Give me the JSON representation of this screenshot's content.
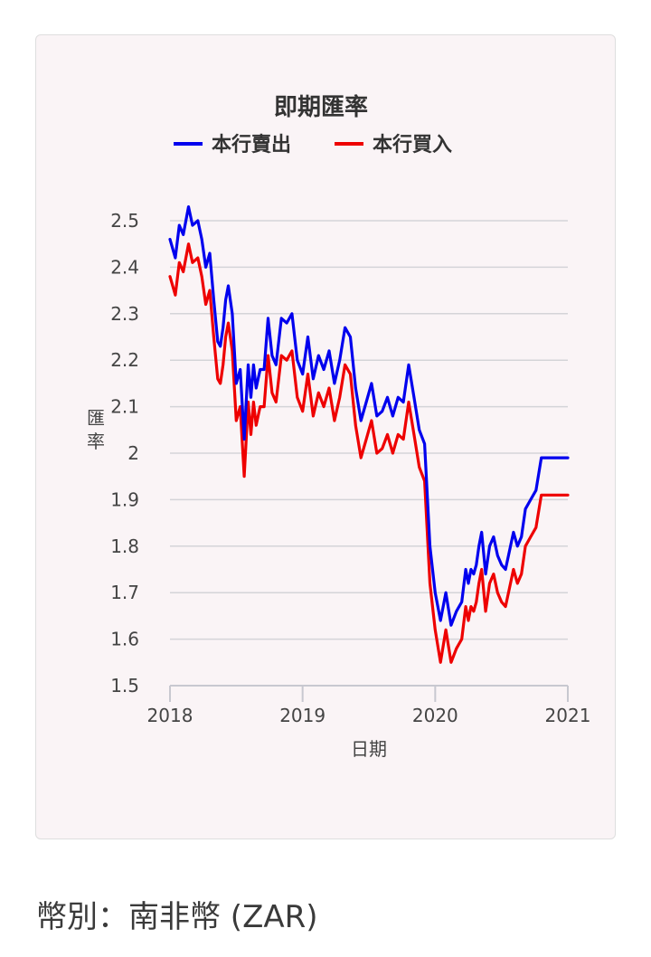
{
  "chart_data": {
    "type": "line",
    "title": "即期匯率",
    "xlabel": "日期",
    "ylabel": "匯率",
    "ylim": [
      1.5,
      2.5
    ],
    "yticks": [
      1.5,
      1.6,
      1.7,
      1.8,
      1.9,
      2,
      2.1,
      2.2,
      2.3,
      2.4,
      2.5
    ],
    "ytick_labels": [
      "1.5",
      "1.6",
      "1.7",
      "1.8",
      "1.9",
      "2",
      "2.1",
      "2.2",
      "2.3",
      "2.4",
      "2.5"
    ],
    "xlim": [
      2018.0,
      2021.0
    ],
    "xticks": [
      2018,
      2019,
      2020,
      2021
    ],
    "xtick_labels": [
      "2018",
      "2019",
      "2020",
      "2021"
    ],
    "grid": true,
    "legend_position": "top",
    "series": [
      {
        "name": "本行賣出",
        "color": "#0000ee",
        "x": [
          2018.0,
          2018.04,
          2018.07,
          2018.1,
          2018.14,
          2018.17,
          2018.21,
          2018.24,
          2018.27,
          2018.3,
          2018.33,
          2018.36,
          2018.38,
          2018.4,
          2018.42,
          2018.44,
          2018.47,
          2018.5,
          2018.53,
          2018.56,
          2018.59,
          2018.61,
          2018.63,
          2018.65,
          2018.68,
          2018.71,
          2018.74,
          2018.77,
          2018.8,
          2018.84,
          2018.88,
          2018.92,
          2018.96,
          2019.0,
          2019.04,
          2019.08,
          2019.12,
          2019.16,
          2019.2,
          2019.24,
          2019.28,
          2019.32,
          2019.36,
          2019.4,
          2019.44,
          2019.48,
          2019.52,
          2019.56,
          2019.6,
          2019.64,
          2019.68,
          2019.72,
          2019.76,
          2019.8,
          2019.84,
          2019.88,
          2019.92,
          2019.96,
          2020.0,
          2020.04,
          2020.08,
          2020.12,
          2020.16,
          2020.2,
          2020.23,
          2020.25,
          2020.27,
          2020.29,
          2020.31,
          2020.33,
          2020.35,
          2020.38,
          2020.41,
          2020.44,
          2020.47,
          2020.5,
          2020.53,
          2020.56,
          2020.59,
          2020.62,
          2020.65,
          2020.68,
          2020.72,
          2020.76,
          2020.8,
          2020.84,
          2020.88,
          2020.91,
          2020.94,
          2020.97,
          2021.0
        ],
        "values": [
          2.46,
          2.42,
          2.49,
          2.47,
          2.53,
          2.49,
          2.5,
          2.46,
          2.4,
          2.43,
          2.33,
          2.24,
          2.23,
          2.27,
          2.33,
          2.36,
          2.3,
          2.15,
          2.18,
          2.03,
          2.19,
          2.12,
          2.19,
          2.14,
          2.18,
          2.18,
          2.29,
          2.21,
          2.19,
          2.29,
          2.28,
          2.3,
          2.2,
          2.17,
          2.25,
          2.16,
          2.21,
          2.18,
          2.22,
          2.15,
          2.2,
          2.27,
          2.25,
          2.14,
          2.07,
          2.11,
          2.15,
          2.08,
          2.09,
          2.12,
          2.08,
          2.12,
          2.11,
          2.19,
          2.12,
          2.05,
          2.02,
          1.8,
          1.7,
          1.64,
          1.7,
          1.63,
          1.66,
          1.68,
          1.75,
          1.72,
          1.75,
          1.74,
          1.76,
          1.8,
          1.83,
          1.74,
          1.8,
          1.82,
          1.78,
          1.76,
          1.75,
          1.79,
          1.83,
          1.8,
          1.82,
          1.88,
          1.9,
          1.92,
          1.99,
          1.99,
          1.99,
          1.99,
          1.99,
          1.99,
          1.99
        ],
        "note": ""
      },
      {
        "name": "本行買入",
        "color": "#ee0000",
        "x": [
          2018.0,
          2018.04,
          2018.07,
          2018.1,
          2018.14,
          2018.17,
          2018.21,
          2018.24,
          2018.27,
          2018.3,
          2018.33,
          2018.36,
          2018.38,
          2018.4,
          2018.42,
          2018.44,
          2018.47,
          2018.5,
          2018.53,
          2018.56,
          2018.59,
          2018.61,
          2018.63,
          2018.65,
          2018.68,
          2018.71,
          2018.74,
          2018.77,
          2018.8,
          2018.84,
          2018.88,
          2018.92,
          2018.96,
          2019.0,
          2019.04,
          2019.08,
          2019.12,
          2019.16,
          2019.2,
          2019.24,
          2019.28,
          2019.32,
          2019.36,
          2019.4,
          2019.44,
          2019.48,
          2019.52,
          2019.56,
          2019.6,
          2019.64,
          2019.68,
          2019.72,
          2019.76,
          2019.8,
          2019.84,
          2019.88,
          2019.92,
          2019.96,
          2020.0,
          2020.04,
          2020.08,
          2020.12,
          2020.16,
          2020.2,
          2020.23,
          2020.25,
          2020.27,
          2020.29,
          2020.31,
          2020.33,
          2020.35,
          2020.38,
          2020.41,
          2020.44,
          2020.47,
          2020.5,
          2020.53,
          2020.56,
          2020.59,
          2020.62,
          2020.65,
          2020.68,
          2020.72,
          2020.76,
          2020.8,
          2020.84,
          2020.88,
          2020.91,
          2020.94,
          2020.97,
          2021.0
        ],
        "values": [
          2.38,
          2.34,
          2.41,
          2.39,
          2.45,
          2.41,
          2.42,
          2.38,
          2.32,
          2.35,
          2.25,
          2.16,
          2.15,
          2.19,
          2.25,
          2.28,
          2.22,
          2.07,
          2.1,
          1.95,
          2.11,
          2.04,
          2.11,
          2.06,
          2.1,
          2.1,
          2.21,
          2.13,
          2.11,
          2.21,
          2.2,
          2.22,
          2.12,
          2.09,
          2.17,
          2.08,
          2.13,
          2.1,
          2.14,
          2.07,
          2.12,
          2.19,
          2.17,
          2.06,
          1.99,
          2.03,
          2.07,
          2.0,
          2.01,
          2.04,
          2.0,
          2.04,
          2.03,
          2.11,
          2.04,
          1.97,
          1.94,
          1.72,
          1.62,
          1.55,
          1.62,
          1.55,
          1.58,
          1.6,
          1.67,
          1.64,
          1.67,
          1.66,
          1.68,
          1.72,
          1.75,
          1.66,
          1.72,
          1.74,
          1.7,
          1.68,
          1.67,
          1.71,
          1.75,
          1.72,
          1.74,
          1.8,
          1.82,
          1.84,
          1.91,
          1.91,
          1.91,
          1.91,
          1.91,
          1.91,
          1.91
        ],
        "note": ""
      }
    ]
  },
  "footer": {
    "currency_text": "幣別：南非幣 (ZAR)"
  }
}
